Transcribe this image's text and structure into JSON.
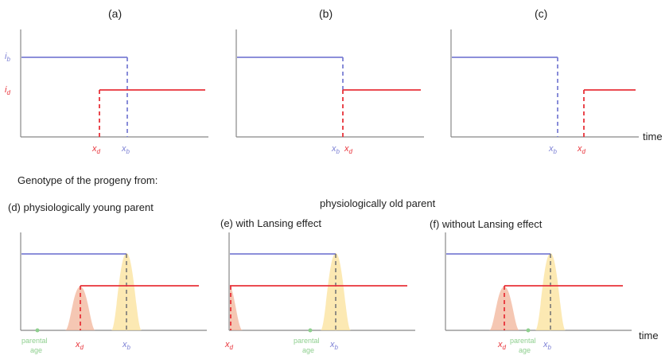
{
  "colors": {
    "birth": "#7b7fd4",
    "death": "#e8333a",
    "axis": "#888888",
    "death_peak": "#f2b49a",
    "birth_peak": "#fbe3a0",
    "parental_age": "#8fcf8f"
  },
  "top_panels": [
    {
      "label": "(a)",
      "ib": "i",
      "ib_sub": "b",
      "id": "i",
      "id_sub": "d",
      "xd": "x",
      "xd_sub": "d",
      "xb": "x",
      "xb_sub": "b"
    },
    {
      "label": "(b)",
      "xb": "x",
      "xb_sub": "b",
      "xd": "x",
      "xd_sub": "d"
    },
    {
      "label": "(c)",
      "xb": "x",
      "xb_sub": "b",
      "xd": "x",
      "xd_sub": "d",
      "time": "time"
    }
  ],
  "headings": {
    "genotype": "Genotype of the progeny from:",
    "young": "(d) physiologically young parent",
    "old": "physiologically old parent",
    "with_lansing": "(e) with Lansing effect",
    "without_lansing": "(f)  without Lansing effect"
  },
  "bottom_panels": [
    {
      "parental_age_line1": "parental",
      "parental_age_line2": "age",
      "xd": "x",
      "xd_sub": "d",
      "xb": "x",
      "xb_sub": "b"
    },
    {
      "xd": "x",
      "xd_sub": "d",
      "parental_age_line1": "parental",
      "parental_age_line2": "age",
      "xb": "x",
      "xb_sub": "b"
    },
    {
      "xd": "x",
      "xd_sub": "d",
      "parental_age_line1": "parental",
      "parental_age_line2": "age",
      "xb": "x",
      "xb_sub": "b",
      "time": "time"
    }
  ]
}
